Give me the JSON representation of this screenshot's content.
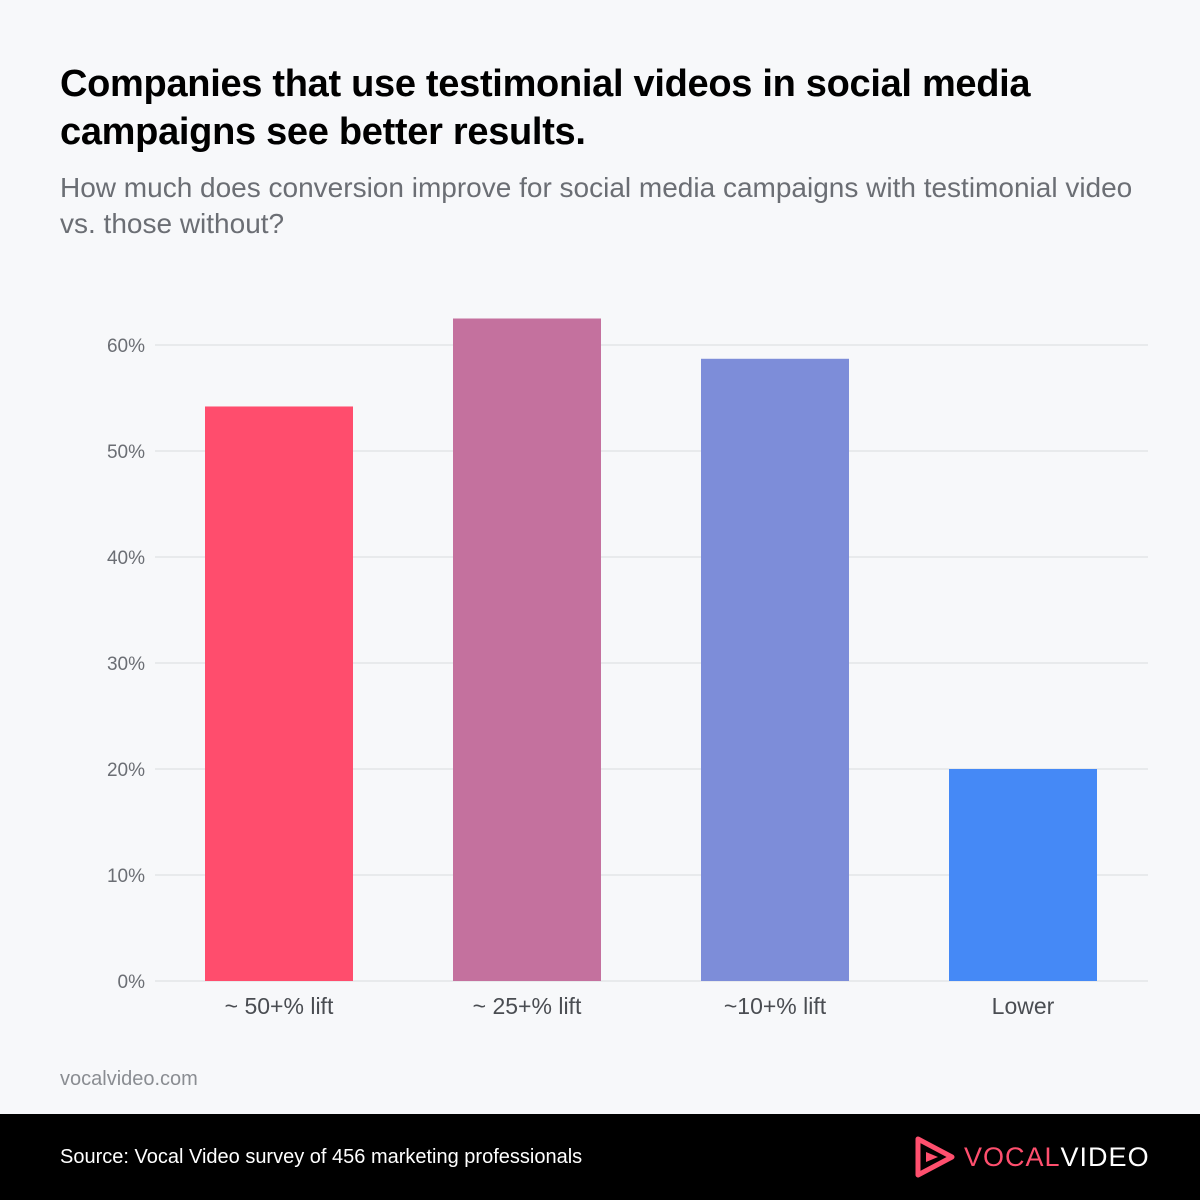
{
  "title": "Companies that use testimonial videos in social media campaigns see better results.",
  "subtitle": "How much does conversion improve for social media campaigns with testimonial video vs. those without?",
  "website": "vocalvideo.com",
  "footer": {
    "source": "Source: Vocal Video survey of 456 marketing professionals",
    "brand_vocal": "VOCAL",
    "brand_video": "VIDEO",
    "brand_color": "#ff4f6e"
  },
  "chart_data": {
    "type": "bar",
    "categories": [
      "~ 50+% lift",
      "~ 25+% lift",
      "~10+% lift",
      "Lower"
    ],
    "values": [
      54.2,
      62.5,
      58.7,
      20.0
    ],
    "colors": [
      "#ff4d6d",
      "#c4719e",
      "#7d8dd9",
      "#4589f6"
    ],
    "yticks": [
      "0%",
      "10%",
      "20%",
      "30%",
      "40%",
      "50%",
      "60%"
    ],
    "ytick_values": [
      0,
      10,
      20,
      30,
      40,
      50,
      60
    ],
    "ylim": [
      0,
      65
    ],
    "grid": true,
    "legend": "none"
  }
}
